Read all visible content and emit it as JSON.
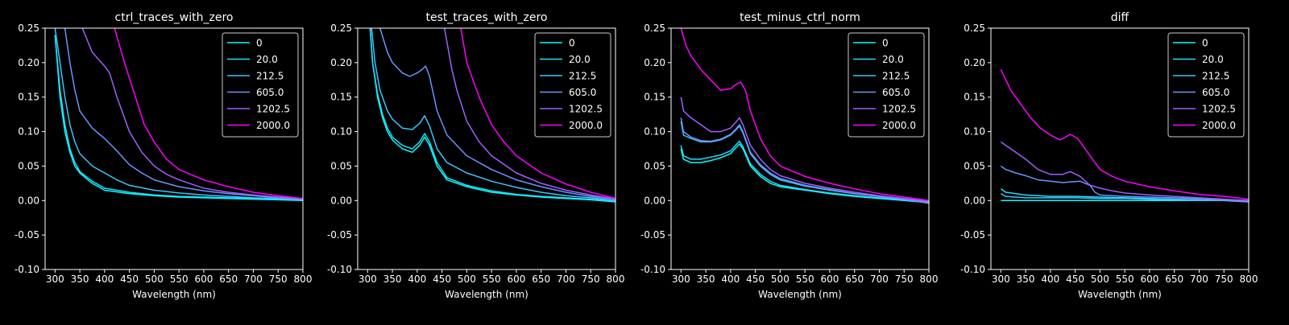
{
  "figure": {
    "background": "#000000",
    "foreground": "#ffffff"
  },
  "legend": {
    "labels": [
      "0",
      "20.0",
      "212.5",
      "605.0",
      "1202.5",
      "2000.0"
    ],
    "colors": [
      "#00ffff",
      "#1ee1ff",
      "#3bc4ff",
      "#6a95ff",
      "#a15eff",
      "#ff00ff"
    ],
    "placement": "top-right"
  },
  "chart_data": [
    {
      "type": "line",
      "title": "ctrl_traces_with_zero",
      "xlabel": "Wavelength (nm)",
      "ylabel": "",
      "xlim": [
        280,
        800
      ],
      "ylim": [
        -0.1,
        0.25
      ],
      "xticks": [
        300,
        350,
        400,
        450,
        500,
        550,
        600,
        650,
        700,
        750,
        800
      ],
      "yticks": [
        "-0.10",
        "-0.05",
        "0.00",
        "0.05",
        "0.10",
        "0.15",
        "0.20",
        "0.25"
      ],
      "grid": false,
      "series": [
        {
          "name": "0",
          "x": [
            300,
            310,
            320,
            330,
            340,
            350,
            375,
            400,
            450,
            500,
            550,
            600,
            650,
            700,
            750,
            800
          ],
          "y": [
            0.24,
            0.15,
            0.1,
            0.07,
            0.05,
            0.04,
            0.025,
            0.015,
            0.01,
            0.007,
            0.005,
            0.004,
            0.003,
            0.002,
            0.001,
            0.0
          ]
        },
        {
          "name": "20.0",
          "x": [
            300,
            310,
            320,
            330,
            340,
            350,
            375,
            400,
            450,
            500,
            550,
            600,
            650,
            700,
            750,
            800
          ],
          "y": [
            0.24,
            0.16,
            0.11,
            0.075,
            0.055,
            0.042,
            0.028,
            0.018,
            0.012,
            0.008,
            0.006,
            0.005,
            0.004,
            0.003,
            0.002,
            0.001
          ]
        },
        {
          "name": "212.5",
          "x": [
            300,
            310,
            320,
            330,
            340,
            350,
            375,
            400,
            425,
            450,
            500,
            550,
            600,
            650,
            700,
            750,
            800
          ],
          "y": [
            0.25,
            0.2,
            0.15,
            0.11,
            0.085,
            0.068,
            0.05,
            0.04,
            0.03,
            0.022,
            0.015,
            0.011,
            0.008,
            0.006,
            0.004,
            0.003,
            0.002
          ]
        },
        {
          "name": "605.0",
          "x": [
            320,
            330,
            340,
            350,
            375,
            400,
            425,
            450,
            475,
            500,
            550,
            600,
            650,
            700,
            750,
            800
          ],
          "y": [
            0.25,
            0.2,
            0.16,
            0.13,
            0.105,
            0.09,
            0.072,
            0.052,
            0.04,
            0.03,
            0.02,
            0.014,
            0.01,
            0.007,
            0.004,
            0.002
          ]
        },
        {
          "name": "1202.5",
          "x": [
            355,
            375,
            400,
            410,
            425,
            450,
            475,
            500,
            525,
            550,
            600,
            650,
            700,
            750,
            800
          ],
          "y": [
            0.25,
            0.215,
            0.195,
            0.185,
            0.15,
            0.1,
            0.07,
            0.05,
            0.038,
            0.03,
            0.018,
            0.012,
            0.008,
            0.005,
            0.003
          ]
        },
        {
          "name": "2000.0",
          "x": [
            420,
            440,
            460,
            480,
            500,
            525,
            550,
            600,
            650,
            700,
            750,
            800
          ],
          "y": [
            0.25,
            0.2,
            0.155,
            0.11,
            0.085,
            0.06,
            0.045,
            0.03,
            0.02,
            0.012,
            0.007,
            0.003
          ]
        }
      ]
    },
    {
      "type": "line",
      "title": "test_traces_with_zero",
      "xlabel": "Wavelength (nm)",
      "ylabel": "",
      "xlim": [
        280,
        800
      ],
      "ylim": [
        -0.1,
        0.25
      ],
      "xticks": [
        300,
        350,
        400,
        450,
        500,
        550,
        600,
        650,
        700,
        750,
        800
      ],
      "yticks": [
        "-0.10",
        "-0.05",
        "0.00",
        "0.05",
        "0.10",
        "0.15",
        "0.20",
        "0.25"
      ],
      "grid": false,
      "series": [
        {
          "name": "0",
          "x": [
            305,
            310,
            320,
            330,
            340,
            350,
            370,
            390,
            405,
            415,
            425,
            440,
            460,
            500,
            550,
            600,
            650,
            700,
            750,
            800
          ],
          "y": [
            0.25,
            0.2,
            0.15,
            0.12,
            0.1,
            0.088,
            0.075,
            0.07,
            0.08,
            0.092,
            0.08,
            0.05,
            0.03,
            0.02,
            0.012,
            0.008,
            0.005,
            0.003,
            0.001,
            -0.002
          ]
        },
        {
          "name": "20.0",
          "x": [
            305,
            310,
            320,
            330,
            340,
            350,
            370,
            390,
            405,
            415,
            425,
            440,
            460,
            500,
            550,
            600,
            650,
            700,
            750,
            800
          ],
          "y": [
            0.25,
            0.2,
            0.155,
            0.125,
            0.105,
            0.092,
            0.08,
            0.075,
            0.085,
            0.097,
            0.085,
            0.055,
            0.033,
            0.022,
            0.014,
            0.009,
            0.006,
            0.004,
            0.002,
            -0.001
          ]
        },
        {
          "name": "212.5",
          "x": [
            308,
            315,
            325,
            340,
            350,
            370,
            390,
            405,
            415,
            425,
            440,
            460,
            500,
            550,
            600,
            650,
            700,
            750,
            800
          ],
          "y": [
            0.25,
            0.2,
            0.16,
            0.13,
            0.118,
            0.105,
            0.103,
            0.112,
            0.123,
            0.108,
            0.075,
            0.055,
            0.04,
            0.028,
            0.019,
            0.012,
            0.007,
            0.004,
            0.0
          ]
        },
        {
          "name": "605.0",
          "x": [
            325,
            340,
            350,
            370,
            385,
            400,
            410,
            417,
            425,
            440,
            460,
            500,
            550,
            600,
            650,
            700,
            750,
            800
          ],
          "y": [
            0.25,
            0.215,
            0.2,
            0.185,
            0.18,
            0.185,
            0.19,
            0.195,
            0.18,
            0.13,
            0.095,
            0.065,
            0.045,
            0.03,
            0.02,
            0.012,
            0.006,
            0.002
          ]
        },
        {
          "name": "1202.5",
          "x": [
            455,
            470,
            480,
            500,
            525,
            550,
            600,
            650,
            700,
            750,
            800
          ],
          "y": [
            0.25,
            0.19,
            0.16,
            0.115,
            0.085,
            0.065,
            0.04,
            0.025,
            0.015,
            0.008,
            0.002
          ]
        },
        {
          "name": "2000.0",
          "x": [
            488,
            500,
            525,
            550,
            575,
            600,
            650,
            700,
            750,
            800
          ],
          "y": [
            0.25,
            0.2,
            0.15,
            0.11,
            0.085,
            0.065,
            0.04,
            0.024,
            0.012,
            0.003
          ]
        }
      ]
    },
    {
      "type": "line",
      "title": "test_minus_ctrl_norm",
      "xlabel": "Wavelength (nm)",
      "ylabel": "",
      "xlim": [
        280,
        800
      ],
      "ylim": [
        -0.1,
        0.25
      ],
      "xticks": [
        300,
        350,
        400,
        450,
        500,
        550,
        600,
        650,
        700,
        750,
        800
      ],
      "yticks": [
        "-0.10",
        "-0.05",
        "0.00",
        "0.05",
        "0.10",
        "0.15",
        "0.20",
        "0.25"
      ],
      "grid": false,
      "series": [
        {
          "name": "0",
          "x": [
            300,
            305,
            320,
            340,
            360,
            380,
            400,
            410,
            418,
            425,
            440,
            460,
            480,
            500,
            550,
            600,
            650,
            700,
            750,
            800
          ],
          "y": [
            0.075,
            0.06,
            0.055,
            0.055,
            0.058,
            0.062,
            0.068,
            0.076,
            0.082,
            0.075,
            0.05,
            0.035,
            0.025,
            0.02,
            0.015,
            0.01,
            0.006,
            0.003,
            0.0,
            -0.003
          ]
        },
        {
          "name": "20.0",
          "x": [
            300,
            305,
            320,
            340,
            360,
            380,
            400,
            410,
            418,
            425,
            440,
            460,
            480,
            500,
            550,
            600,
            650,
            700,
            750,
            800
          ],
          "y": [
            0.08,
            0.065,
            0.06,
            0.06,
            0.063,
            0.066,
            0.072,
            0.08,
            0.086,
            0.078,
            0.053,
            0.038,
            0.028,
            0.022,
            0.016,
            0.011,
            0.007,
            0.004,
            0.001,
            -0.002
          ]
        },
        {
          "name": "212.5",
          "x": [
            300,
            305,
            320,
            340,
            360,
            380,
            400,
            410,
            418,
            425,
            440,
            460,
            480,
            500,
            550,
            600,
            650,
            700,
            750,
            800
          ],
          "y": [
            0.115,
            0.095,
            0.09,
            0.085,
            0.085,
            0.088,
            0.095,
            0.102,
            0.108,
            0.098,
            0.068,
            0.05,
            0.038,
            0.03,
            0.021,
            0.015,
            0.01,
            0.006,
            0.002,
            -0.002
          ]
        },
        {
          "name": "605.0",
          "x": [
            300,
            305,
            320,
            340,
            360,
            380,
            400,
            410,
            418,
            425,
            440,
            460,
            480,
            500,
            550,
            600,
            650,
            700,
            750,
            800
          ],
          "y": [
            0.12,
            0.1,
            0.092,
            0.087,
            0.086,
            0.089,
            0.096,
            0.103,
            0.11,
            0.1,
            0.07,
            0.052,
            0.04,
            0.032,
            0.022,
            0.016,
            0.01,
            0.006,
            0.002,
            -0.004
          ]
        },
        {
          "name": "1202.5",
          "x": [
            300,
            305,
            320,
            340,
            360,
            380,
            400,
            410,
            418,
            425,
            440,
            460,
            480,
            500,
            550,
            600,
            650,
            700,
            750,
            800
          ],
          "y": [
            0.15,
            0.13,
            0.12,
            0.11,
            0.1,
            0.1,
            0.105,
            0.113,
            0.12,
            0.11,
            0.08,
            0.06,
            0.045,
            0.036,
            0.025,
            0.018,
            0.012,
            0.007,
            0.003,
            -0.001
          ]
        },
        {
          "name": "2000.0",
          "x": [
            300,
            310,
            320,
            340,
            360,
            380,
            400,
            410,
            420,
            430,
            440,
            460,
            480,
            500,
            550,
            600,
            650,
            700,
            750,
            800
          ],
          "y": [
            0.25,
            0.225,
            0.21,
            0.19,
            0.175,
            0.16,
            0.162,
            0.168,
            0.172,
            0.16,
            0.13,
            0.09,
            0.065,
            0.05,
            0.035,
            0.025,
            0.017,
            0.01,
            0.005,
            0.0
          ]
        }
      ]
    },
    {
      "type": "line",
      "title": "diff",
      "xlabel": "Wavelength (nm)",
      "ylabel": "",
      "xlim": [
        280,
        800
      ],
      "ylim": [
        -0.1,
        0.25
      ],
      "xticks": [
        300,
        350,
        400,
        450,
        500,
        550,
        600,
        650,
        700,
        750,
        800
      ],
      "yticks": [
        "-0.10",
        "-0.05",
        "0.00",
        "0.05",
        "0.10",
        "0.15",
        "0.20",
        "0.25"
      ],
      "grid": false,
      "series": [
        {
          "name": "0",
          "x": [
            300,
            350,
            400,
            450,
            500,
            550,
            600,
            650,
            700,
            750,
            800
          ],
          "y": [
            0.0,
            0.0,
            0.0,
            0.0,
            0.0,
            0.0,
            0.0,
            0.0,
            0.0,
            0.0,
            0.0
          ]
        },
        {
          "name": "20.0",
          "x": [
            300,
            310,
            350,
            400,
            450,
            500,
            550,
            600,
            650,
            700,
            750,
            800
          ],
          "y": [
            0.017,
            0.012,
            0.008,
            0.006,
            0.006,
            0.005,
            0.004,
            0.003,
            0.002,
            0.001,
            0.0,
            -0.002
          ]
        },
        {
          "name": "212.5",
          "x": [
            300,
            310,
            350,
            400,
            450,
            500,
            550,
            600,
            650,
            700,
            750,
            800
          ],
          "y": [
            0.01,
            0.006,
            0.004,
            0.004,
            0.004,
            0.003,
            0.003,
            0.002,
            0.001,
            0.0,
            0.0,
            -0.001
          ]
        },
        {
          "name": "605.0",
          "x": [
            300,
            310,
            330,
            350,
            375,
            400,
            425,
            440,
            460,
            480,
            490,
            500,
            525,
            550,
            600,
            650,
            700,
            750,
            800
          ],
          "y": [
            0.05,
            0.045,
            0.04,
            0.036,
            0.03,
            0.028,
            0.026,
            0.027,
            0.028,
            0.022,
            0.012,
            0.008,
            0.007,
            0.006,
            0.005,
            0.004,
            0.003,
            0.001,
            -0.002
          ]
        },
        {
          "name": "1202.5",
          "x": [
            300,
            310,
            330,
            350,
            375,
            400,
            425,
            440,
            460,
            480,
            500,
            525,
            550,
            600,
            650,
            700,
            750,
            800
          ],
          "y": [
            0.085,
            0.08,
            0.07,
            0.06,
            0.045,
            0.038,
            0.038,
            0.042,
            0.035,
            0.022,
            0.018,
            0.014,
            0.011,
            0.008,
            0.006,
            0.004,
            0.002,
            0.0
          ]
        },
        {
          "name": "2000.0",
          "x": [
            300,
            310,
            320,
            340,
            360,
            380,
            400,
            420,
            440,
            455,
            470,
            485,
            500,
            525,
            550,
            600,
            650,
            700,
            750,
            800
          ],
          "y": [
            0.19,
            0.175,
            0.16,
            0.14,
            0.12,
            0.105,
            0.095,
            0.088,
            0.096,
            0.09,
            0.075,
            0.06,
            0.045,
            0.035,
            0.028,
            0.02,
            0.014,
            0.009,
            0.006,
            0.002
          ]
        }
      ]
    }
  ]
}
